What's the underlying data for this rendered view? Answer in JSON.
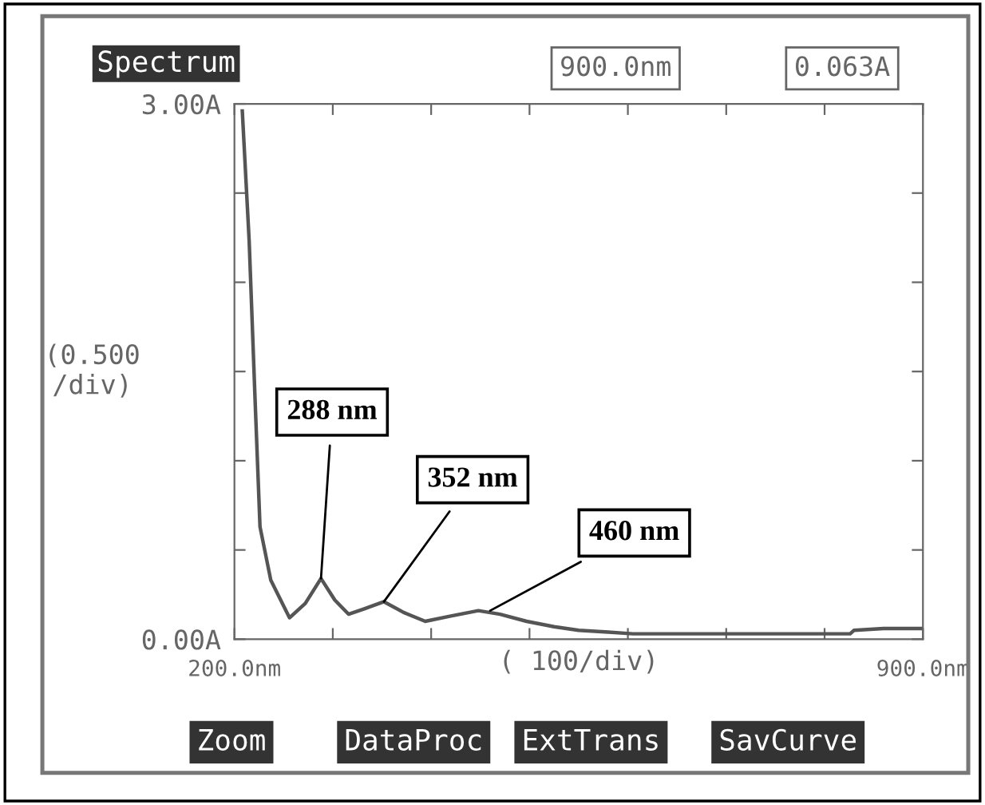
{
  "chart_data": {
    "type": "line",
    "title": "Spectrum",
    "xlabel": "( 100/div)",
    "ylabel": "(0.500\n/div)",
    "x": [
      208,
      215,
      221,
      226,
      237,
      256,
      272,
      288,
      302,
      316,
      332,
      352,
      372,
      394,
      420,
      448,
      470,
      497,
      525,
      550,
      580,
      605,
      700,
      800,
      826,
      830,
      860,
      900
    ],
    "series": [
      {
        "color": "#555555",
        "values": [
          2.96,
          2.23,
          1.34,
          0.63,
          0.33,
          0.12,
          0.2,
          0.34,
          0.22,
          0.14,
          0.17,
          0.21,
          0.15,
          0.1,
          0.13,
          0.16,
          0.14,
          0.1,
          0.07,
          0.05,
          0.04,
          0.03,
          0.03,
          0.03,
          0.03,
          0.05,
          0.06,
          0.06
        ]
      }
    ],
    "xlim": [
      200,
      900
    ],
    "ylim": [
      0,
      3
    ],
    "xticks": [
      {
        "value": 200,
        "label": "200.0nm"
      },
      {
        "value": 300,
        "label": null
      },
      {
        "value": 400,
        "label": null
      },
      {
        "value": 500,
        "label": null
      },
      {
        "value": 600,
        "label": null
      },
      {
        "value": 700,
        "label": null
      },
      {
        "value": 800,
        "label": null
      },
      {
        "value": 900,
        "label": "900.0nm"
      }
    ],
    "yticks": [
      {
        "value": 0,
        "label": "0.00A"
      },
      {
        "value": 0.5,
        "label": null
      },
      {
        "value": 1,
        "label": null
      },
      {
        "value": 1.5,
        "label": null
      },
      {
        "value": 2,
        "label": null
      },
      {
        "value": 2.5,
        "label": null
      },
      {
        "value": 3,
        "label": "3.00A"
      }
    ],
    "grid": false,
    "legend": false,
    "marker": "none",
    "line_style": "solid",
    "annotations": [
      {
        "text": "288 nm",
        "x": 288,
        "y": 0.34
      },
      {
        "text": "352 nm",
        "x": 352,
        "y": 0.21
      },
      {
        "text": "460 nm",
        "x": 460,
        "y": 0.16
      },
      "900.0nm",
      "0.063A",
      "Zoom",
      "DataProc",
      "ExtTrans",
      "SavCurve"
    ]
  }
}
